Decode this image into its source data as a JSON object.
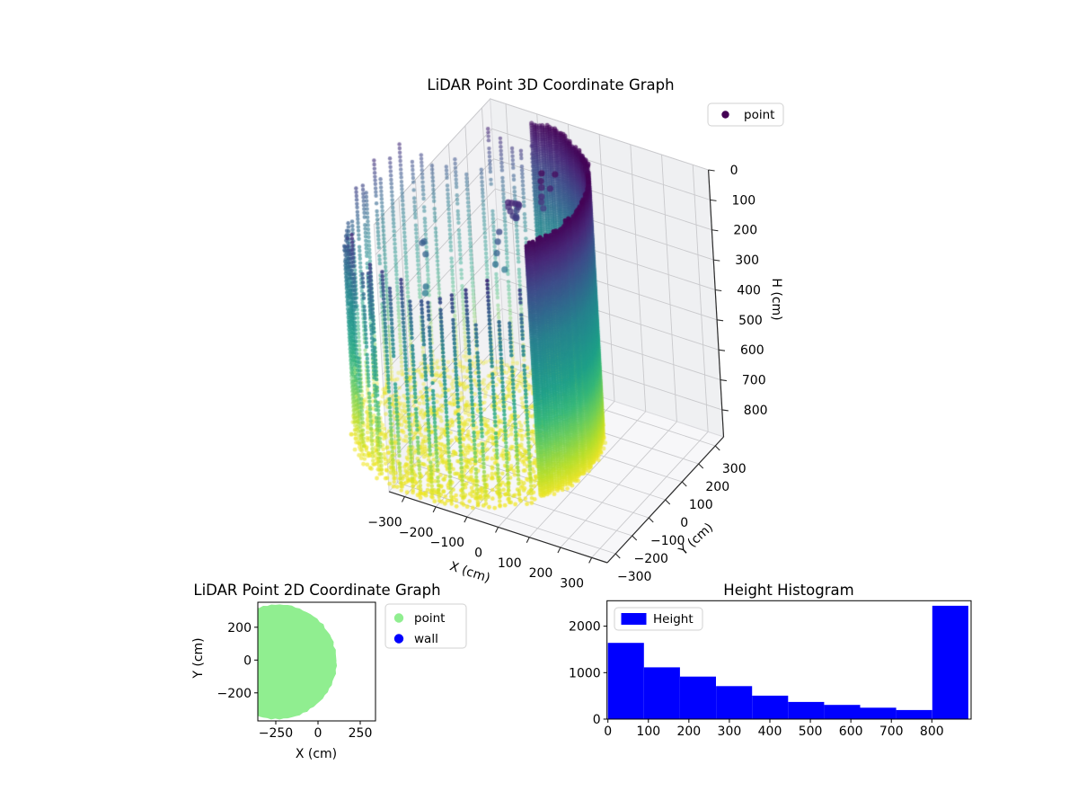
{
  "figure": {
    "background": "#ffffff"
  },
  "plots": {
    "p3d": {
      "title": "LiDAR Point 3D Coordinate Graph",
      "xlabel": "X (cm)",
      "ylabel": "Y (cm)",
      "zlabel": "H (cm)",
      "legend": {
        "items": [
          {
            "label": "point",
            "color": "#440154"
          }
        ]
      },
      "xticks": [
        -300,
        -200,
        -100,
        0,
        100,
        200,
        300
      ],
      "yticks": [
        -300,
        -200,
        -100,
        0,
        100,
        200,
        300
      ],
      "zticks": [
        0,
        100,
        200,
        300,
        400,
        500,
        600,
        700,
        800
      ]
    },
    "p2d": {
      "title": "LiDAR Point 2D Coordinate Graph",
      "xlabel": "X (cm)",
      "ylabel": "Y (cm)",
      "legend": {
        "items": [
          {
            "label": "point",
            "color": "#90ee90"
          },
          {
            "label": "wall",
            "color": "#0000ff"
          }
        ]
      },
      "xticks": [
        -250,
        0,
        250
      ],
      "yticks": [
        200,
        0,
        -200
      ]
    },
    "hist": {
      "title": "Height Histogram",
      "legend": {
        "items": [
          {
            "label": "Height",
            "color": "#0000ff"
          }
        ]
      },
      "xticks": [
        0,
        100,
        200,
        300,
        400,
        500,
        600,
        700,
        800
      ],
      "yticks": [
        0,
        1000,
        2000
      ]
    }
  },
  "chart_data": [
    {
      "type": "scatter3d",
      "title": "LiDAR Point 3D Coordinate Graph",
      "xlabel": "X (cm)",
      "ylabel": "Y (cm)",
      "zlabel": "H (cm)",
      "xlim": [
        -350,
        350
      ],
      "ylim": [
        -350,
        350
      ],
      "hlim": [
        0,
        890
      ],
      "h_axis_inverted": true,
      "legend_entries": [
        "point"
      ],
      "color_by": "H",
      "colormap": "viridis",
      "colormap_stops": [
        "#440154",
        "#482878",
        "#3e4c8a",
        "#31688e",
        "#26828e",
        "#21918c",
        "#1fa088",
        "#35b779",
        "#6ece58",
        "#b5de2b",
        "#fde725"
      ],
      "structure": {
        "shape": "hollow cylinder scan with dense floor",
        "cylinder": {
          "center_x": -240,
          "center_y": -10,
          "radius": 350,
          "rim_h_min": 0,
          "floor_h": 850,
          "wall_h_max": 865
        },
        "dense_wall_arc_deg": [
          -32,
          86
        ],
        "sparse_wall_step_deg": 5.4,
        "wall_point_spacing_cm": 12.5,
        "floor_point_count": 1500,
        "outliers_xyh": [
          [
            -133,
            42,
            88
          ],
          [
            -126,
            50,
            92
          ],
          [
            -120,
            60,
            98
          ],
          [
            -118,
            72,
            106
          ],
          [
            -122,
            84,
            118
          ],
          [
            -130,
            92,
            132
          ],
          [
            -138,
            96,
            148
          ],
          [
            -136,
            88,
            162
          ],
          [
            -128,
            76,
            158
          ],
          [
            -124,
            64,
            150
          ],
          [
            -127,
            55,
            138
          ],
          [
            -131,
            48,
            120
          ],
          [
            -134,
            44,
            104
          ],
          [
            -68,
            128,
            20
          ],
          [
            -70,
            125,
            45
          ],
          [
            -72,
            130,
            70
          ],
          [
            -69,
            122,
            95
          ],
          [
            -74,
            128,
            118
          ],
          [
            -71,
            132,
            140
          ],
          [
            -38,
            152,
            28
          ],
          [
            -52,
            144,
            75
          ],
          [
            -155,
            20,
            180
          ],
          [
            -158,
            14,
            210
          ],
          [
            -160,
            8,
            245
          ],
          [
            -163,
            2,
            280
          ],
          [
            -150,
            30,
            310
          ],
          [
            -352,
            -78,
            225
          ],
          [
            -335,
            -92,
            248
          ],
          [
            -362,
            -50,
            240
          ],
          [
            -310,
            -150,
            335
          ],
          [
            -298,
            -165,
            300
          ]
        ]
      }
    },
    {
      "type": "scatter",
      "title": "LiDAR Point 2D Coordinate Graph",
      "xlabel": "X (cm)",
      "ylabel": "Y (cm)",
      "xlim": [
        -356,
        340
      ],
      "ylim": [
        -371,
        352
      ],
      "series": [
        {
          "name": "point",
          "color": "#90ee90",
          "geometry": "filled disk",
          "center": [
            -240,
            -10
          ],
          "radius": 350
        },
        {
          "name": "wall",
          "color": "#0000ff",
          "geometry": "occluded beneath point disk"
        }
      ]
    },
    {
      "type": "bar",
      "title": "Height Histogram",
      "legend_entries": [
        "Height"
      ],
      "bar_color": "#0000ff",
      "bin_edges": [
        0,
        89,
        178,
        267,
        356,
        445,
        534,
        623,
        712,
        801,
        890
      ],
      "counts": [
        1640,
        1115,
        915,
        710,
        505,
        370,
        305,
        245,
        195,
        2440
      ],
      "xticks": [
        0,
        100,
        200,
        300,
        400,
        500,
        600,
        700,
        800
      ],
      "yticks": [
        0,
        1000,
        2000
      ],
      "xlim": [
        -2,
        890
      ],
      "ylim": [
        0,
        2550
      ]
    }
  ]
}
